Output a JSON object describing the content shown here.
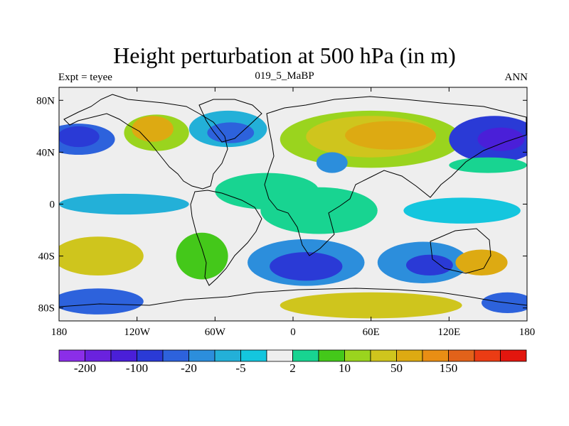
{
  "title": "Height perturbation at 500 hPa (in m)",
  "left_subtitle": "Expt = teyee",
  "center_subtitle": "019_5_MaBP",
  "right_subtitle": "ANN",
  "lat_ticks": [
    {
      "value": 80,
      "label": "80N"
    },
    {
      "value": 40,
      "label": "40N"
    },
    {
      "value": 0,
      "label": "0"
    },
    {
      "value": -40,
      "label": "40S"
    },
    {
      "value": -80,
      "label": "80S"
    }
  ],
  "lon_ticks": [
    {
      "value": -180,
      "label": "180"
    },
    {
      "value": -120,
      "label": "120W"
    },
    {
      "value": -60,
      "label": "60W"
    },
    {
      "value": 0,
      "label": "0"
    },
    {
      "value": 60,
      "label": "60E"
    },
    {
      "value": 120,
      "label": "120E"
    },
    {
      "value": 180,
      "label": "180"
    }
  ],
  "colorbar": {
    "colors": [
      "#8b2ee8",
      "#6a22de",
      "#4a1fd8",
      "#2a3ad6",
      "#2d62dc",
      "#2c8edc",
      "#23b0d8",
      "#14c6de",
      "#eeeeee",
      "#18d491",
      "#44c81a",
      "#9ad41e",
      "#cfc51d",
      "#ddaa12",
      "#e98e14",
      "#e2621a",
      "#eb3c14",
      "#e3160e"
    ],
    "labels": [
      {
        "after_index": 0,
        "text": "-200"
      },
      {
        "after_index": 2,
        "text": "-100"
      },
      {
        "after_index": 4,
        "text": "-20"
      },
      {
        "after_index": 6,
        "text": "-5"
      },
      {
        "after_index": 8,
        "text": "2"
      },
      {
        "after_index": 10,
        "text": "10"
      },
      {
        "after_index": 12,
        "text": "50"
      },
      {
        "after_index": 14,
        "text": "150"
      }
    ]
  },
  "field_blobs": [
    {
      "lon": -165,
      "lat": 50,
      "rx": 28,
      "ry": 12,
      "color": "#2d62dc"
    },
    {
      "lon": -165,
      "lat": 52,
      "rx": 16,
      "ry": 8,
      "color": "#2a3ad6"
    },
    {
      "lon": -105,
      "lat": 55,
      "rx": 25,
      "ry": 14,
      "color": "#9ad41e"
    },
    {
      "lon": -108,
      "lat": 58,
      "rx": 16,
      "ry": 10,
      "color": "#ddaa12"
    },
    {
      "lon": -50,
      "lat": 58,
      "rx": 30,
      "ry": 14,
      "color": "#23b0d8"
    },
    {
      "lon": -48,
      "lat": 55,
      "rx": 18,
      "ry": 8,
      "color": "#2d62dc"
    },
    {
      "lon": 60,
      "lat": 50,
      "rx": 70,
      "ry": 22,
      "color": "#9ad41e"
    },
    {
      "lon": 60,
      "lat": 52,
      "rx": 50,
      "ry": 16,
      "color": "#cfc51d"
    },
    {
      "lon": 75,
      "lat": 53,
      "rx": 35,
      "ry": 11,
      "color": "#ddaa12"
    },
    {
      "lon": 30,
      "lat": 32,
      "rx": 12,
      "ry": 8,
      "color": "#2c8edc"
    },
    {
      "lon": 155,
      "lat": 50,
      "rx": 35,
      "ry": 18,
      "color": "#2a3ad6"
    },
    {
      "lon": 160,
      "lat": 50,
      "rx": 18,
      "ry": 9,
      "color": "#4a1fd8"
    },
    {
      "lon": 150,
      "lat": 30,
      "rx": 30,
      "ry": 6,
      "color": "#18d491"
    },
    {
      "lon": -20,
      "lat": 10,
      "rx": 40,
      "ry": 14,
      "color": "#18d491"
    },
    {
      "lon": 20,
      "lat": -5,
      "rx": 45,
      "ry": 18,
      "color": "#18d491"
    },
    {
      "lon": -130,
      "lat": 0,
      "rx": 50,
      "ry": 8,
      "color": "#23b0d8"
    },
    {
      "lon": 130,
      "lat": -5,
      "rx": 45,
      "ry": 10,
      "color": "#14c6de"
    },
    {
      "lon": -150,
      "lat": -40,
      "rx": 35,
      "ry": 15,
      "color": "#cfc51d"
    },
    {
      "lon": -70,
      "lat": -40,
      "rx": 20,
      "ry": 18,
      "color": "#44c81a"
    },
    {
      "lon": 10,
      "lat": -45,
      "rx": 45,
      "ry": 18,
      "color": "#2c8edc"
    },
    {
      "lon": 10,
      "lat": -48,
      "rx": 28,
      "ry": 11,
      "color": "#2a3ad6"
    },
    {
      "lon": 100,
      "lat": -45,
      "rx": 35,
      "ry": 16,
      "color": "#2c8edc"
    },
    {
      "lon": 105,
      "lat": -47,
      "rx": 18,
      "ry": 8,
      "color": "#2a3ad6"
    },
    {
      "lon": 145,
      "lat": -45,
      "rx": 20,
      "ry": 10,
      "color": "#ddaa12"
    },
    {
      "lon": -150,
      "lat": -75,
      "rx": 35,
      "ry": 10,
      "color": "#2d62dc"
    },
    {
      "lon": 60,
      "lat": -78,
      "rx": 70,
      "ry": 10,
      "color": "#cfc51d"
    },
    {
      "lon": 165,
      "lat": -76,
      "rx": 20,
      "ry": 8,
      "color": "#2d62dc"
    }
  ]
}
